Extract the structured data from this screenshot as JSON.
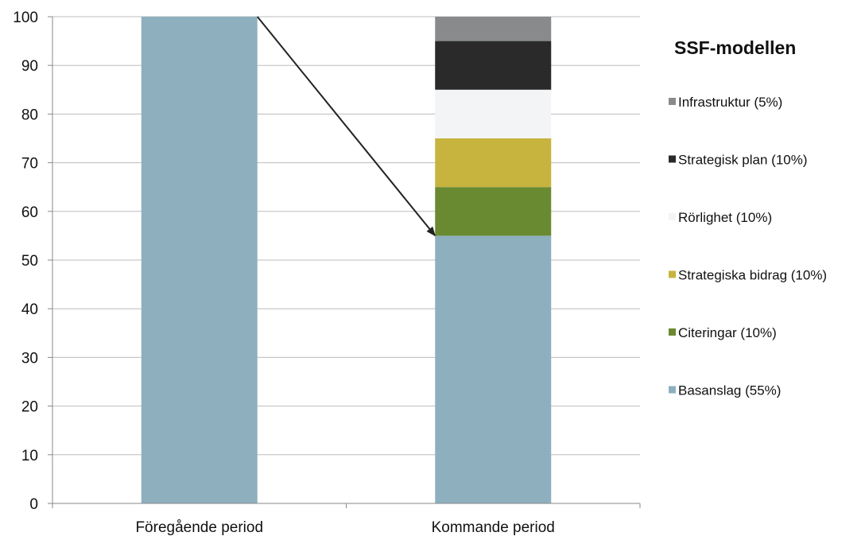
{
  "chart_data": {
    "type": "bar",
    "stacked": true,
    "categories": [
      "Föregående period",
      "Kommande period"
    ],
    "series": [
      {
        "name": "Basanslag (55%)",
        "color": "#8EAFBE",
        "values": [
          100,
          55
        ]
      },
      {
        "name": "Citeringar (10%)",
        "color": "#6A8A32",
        "values": [
          0,
          10
        ]
      },
      {
        "name": "Strategiska bidrag (10%)",
        "color": "#C6B43E",
        "values": [
          0,
          10
        ]
      },
      {
        "name": "Rörlighet (10%)",
        "color": "#F2F4F5",
        "values": [
          0,
          10
        ]
      },
      {
        "name": "Strategisk plan (10%)",
        "color": "#2A2A2A",
        "values": [
          0,
          10
        ]
      },
      {
        "name": "Infrastruktur (5%)",
        "color": "#888A8C",
        "values": [
          0,
          5
        ]
      }
    ],
    "ylim": [
      0,
      100
    ],
    "yticks": [
      0,
      10,
      20,
      30,
      40,
      50,
      60,
      70,
      80,
      90,
      100
    ],
    "grid": true,
    "legend": {
      "title": "SSF-modellen",
      "position": "right",
      "order": [
        "Infrastruktur (5%)",
        "Strategisk plan (10%)",
        "Rörlighet (10%)",
        "Strategiska bidrag (10%)",
        "Citeringar (10%)",
        "Basanslag (55%)"
      ]
    },
    "annotation": {
      "type": "arrow",
      "from": {
        "category": "Föregående period",
        "value": 100
      },
      "to": {
        "category": "Kommande period",
        "value": 55
      }
    }
  }
}
